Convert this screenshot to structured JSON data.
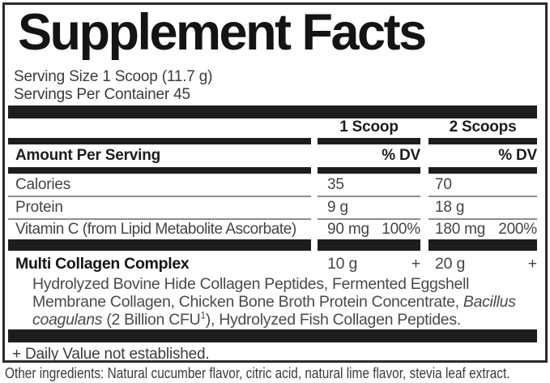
{
  "panel": {
    "title": "Supplement Facts",
    "serving_size": "Serving Size 1 Scoop (11.7 g)",
    "servings_per_container": "Servings Per Container 45",
    "columns": [
      {
        "label": "1 Scoop"
      },
      {
        "label": "2 Scoops"
      }
    ],
    "header": {
      "amount_per_serving": "Amount Per Serving",
      "dv_label": "% DV"
    },
    "rows": [
      {
        "name": "Calories",
        "scoop1_amount": "35",
        "scoop1_dv": "",
        "scoop2_amount": "70",
        "scoop2_dv": ""
      },
      {
        "name": "Protein",
        "scoop1_amount": "9 g",
        "scoop1_dv": "",
        "scoop2_amount": "18 g",
        "scoop2_dv": ""
      },
      {
        "name": "Vitamin C (from Lipid Metabolite Ascorbate)",
        "scoop1_amount": "90 mg",
        "scoop1_dv": "100%",
        "scoop2_amount": "180 mg",
        "scoop2_dv": "200%"
      }
    ],
    "complex": {
      "name": "Multi Collagen Complex",
      "scoop1_amount": "10 g",
      "scoop1_dv": "+",
      "scoop2_amount": "20 g",
      "scoop2_dv": "+",
      "description_line1": "Hydrolyzed Bovine Hide Collagen Peptides, Fermented Eggshell",
      "description_line2_plain": "Membrane Collagen, Chicken Bone Broth Protein Concentrate, ",
      "description_line2_italic": "Bacillus",
      "description_line3_italic": "coagulans",
      "description_line3_plain_a": " (2 Billion CFU",
      "description_line3_sup": "1",
      "description_line3_plain_b": "), Hydrolyzed Fish Collagen Peptides."
    },
    "footnote": "+ Daily Value not established."
  },
  "other_ingredients": "Other ingredients: Natural cucumber flavor, citric acid, natural lime flavor, stevia leaf extract.",
  "colors": {
    "bar": "#1d1d1d",
    "border": "#2b2b2b",
    "separator": "#8d8d8d",
    "text": "#3f3f3f",
    "bold_text": "#141414",
    "background": "#ffffff"
  }
}
